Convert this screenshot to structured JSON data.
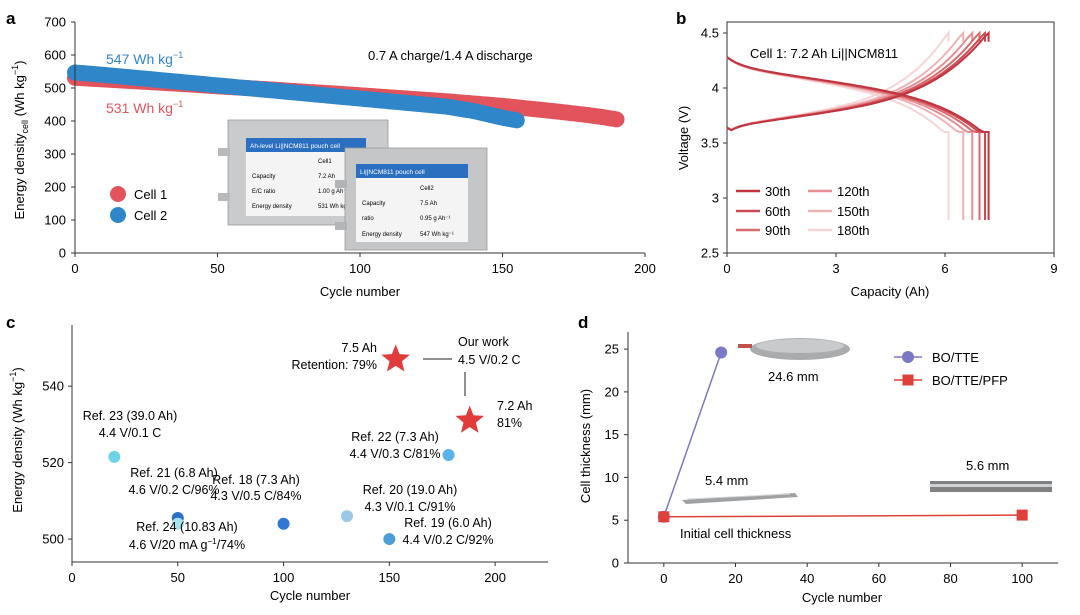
{
  "panels": {
    "a": "a",
    "b": "b",
    "c": "c",
    "d": "d"
  },
  "colors": {
    "cell1": "#e2535c",
    "cell2": "#2f86c8",
    "axis": "#333333",
    "star": "#e23b3b",
    "bo_tte": "#7a79c5",
    "pfp": "#e0403a"
  },
  "chart_data": [
    {
      "id": "a",
      "type": "scatter",
      "xlabel": "Cycle number",
      "ylabel_main": "Energy density",
      "ylabel_sub": "cell",
      "ylabel_unit": " (Wh kg",
      "ylabel_sup": "−1",
      "ylabel_end": ")",
      "xlim": [
        0,
        200
      ],
      "ylim": [
        0,
        700
      ],
      "xticks": [
        0,
        50,
        100,
        150,
        200
      ],
      "yticks": [
        0,
        100,
        200,
        300,
        400,
        500,
        600,
        700
      ],
      "condition": "0.7 A charge/1.4 A discharge",
      "legend_position": "left",
      "series": [
        {
          "name": "Cell 1",
          "color": "#e2535c",
          "points": [
            [
              0,
              531
            ],
            [
              10,
              526
            ],
            [
              20,
              521
            ],
            [
              30,
              516
            ],
            [
              40,
              511
            ],
            [
              50,
              505
            ],
            [
              60,
              500
            ],
            [
              70,
              495
            ],
            [
              80,
              489
            ],
            [
              90,
              484
            ],
            [
              100,
              478
            ],
            [
              110,
              472
            ],
            [
              120,
              466
            ],
            [
              130,
              460
            ],
            [
              140,
              453
            ],
            [
              150,
              446
            ],
            [
              160,
              437
            ],
            [
              170,
              428
            ],
            [
              180,
              418
            ],
            [
              185,
              412
            ],
            [
              190,
              405
            ]
          ]
        },
        {
          "name": "Cell 2",
          "color": "#2f86c8",
          "points": [
            [
              0,
              547
            ],
            [
              10,
              540
            ],
            [
              20,
              532
            ],
            [
              30,
              524
            ],
            [
              40,
              516
            ],
            [
              50,
              508
            ],
            [
              60,
              500
            ],
            [
              70,
              492
            ],
            [
              80,
              484
            ],
            [
              90,
              476
            ],
            [
              100,
              468
            ],
            [
              110,
              460
            ],
            [
              120,
              452
            ],
            [
              130,
              444
            ],
            [
              140,
              430
            ],
            [
              145,
              420
            ],
            [
              150,
              410
            ],
            [
              155,
              402
            ]
          ]
        }
      ],
      "annotations": [
        {
          "value": "547",
          "unit": " Wh kg",
          "sup": "−1",
          "color": "#2f86c8"
        },
        {
          "value": "531",
          "unit": " Wh kg",
          "sup": "−1",
          "color": "#e2535c"
        }
      ],
      "inset1": {
        "title": "Ah-level Li||NCM811 pouch cell",
        "rows": [
          [
            "",
            "Cell1"
          ],
          [
            "Capacity",
            "7.2 Ah"
          ],
          [
            "E/C ratio",
            "1.00 g Ah⁻¹"
          ],
          [
            "Energy density",
            "531 Wh kg⁻¹"
          ]
        ]
      },
      "inset2": {
        "title": "Li||NCM811 pouch cell",
        "rows": [
          [
            "",
            "Cell2"
          ],
          [
            "Capacity",
            "7.5 Ah"
          ],
          [
            "ratio",
            "0.95 g Ah⁻¹"
          ],
          [
            "Energy density",
            "547 Wh kg⁻¹"
          ]
        ]
      }
    },
    {
      "id": "b",
      "type": "line",
      "title": "Cell 1: 7.2 Ah Li||NCM811",
      "xlabel": "Capacity (Ah)",
      "ylabel": "Voltage (V)",
      "xlim": [
        0,
        9
      ],
      "ylim": [
        2.5,
        4.6
      ],
      "xticks": [
        0,
        3,
        6,
        9
      ],
      "yticks": [
        2.5,
        3.0,
        3.5,
        4.0,
        4.5
      ],
      "legend_position": "bottom-left",
      "series": [
        {
          "name": "30th",
          "color": "#c0353f",
          "capacity": 7.2
        },
        {
          "name": "60th",
          "color": "#cc4a52",
          "capacity": 7.1
        },
        {
          "name": "90th",
          "color": "#d86a70",
          "capacity": 6.95
        },
        {
          "name": "120th",
          "color": "#e58e93",
          "capacity": 6.75
        },
        {
          "name": "150th",
          "color": "#efb3b6",
          "capacity": 6.5
        },
        {
          "name": "180th",
          "color": "#f6d4d6",
          "capacity": 6.1
        }
      ]
    },
    {
      "id": "c",
      "type": "scatter",
      "xlabel": "Cycle number",
      "ylabel": "Energy density (Wh kg",
      "ylabel_sup": "−1",
      "ylabel_end": ")",
      "xlim": [
        0,
        225
      ],
      "ylim": [
        494,
        556
      ],
      "xticks": [
        0,
        50,
        100,
        150,
        200
      ],
      "yticks": [
        500,
        520,
        540
      ],
      "points": [
        {
          "x": 20,
          "y": 521.5,
          "color": "#6fd3e6",
          "l1": "Ref. 23 (39.0 Ah)",
          "l2": "4.4 V/0.1 C"
        },
        {
          "x": 50,
          "y": 505.5,
          "color": "#2d6fc0",
          "l1": "Ref. 21 (6.8 Ah)",
          "l2": "4.6 V/0.2 C/96%"
        },
        {
          "x": 50,
          "y": 504,
          "color": "#a9e2ee",
          "l1": "Ref. 24 (10.83 Ah)",
          "l2": "4.6 V/20 mA g",
          "l2sup": "−1",
          "l2end": "/74%"
        },
        {
          "x": 100,
          "y": 504,
          "color": "#2f78d4",
          "l1": "Ref. 18 (7.3 Ah)",
          "l2": "4.3 V/0.5 C/84%"
        },
        {
          "x": 130,
          "y": 506,
          "color": "#9bc8e8",
          "l1": "Ref. 20 (19.0 Ah)",
          "l2": "4.3 V/0.1 C/91%"
        },
        {
          "x": 150,
          "y": 500,
          "color": "#4aa0d6",
          "l1": "Ref. 19 (6.0 Ah)",
          "l2": "4.4 V/0.2 C/92%"
        },
        {
          "x": 178,
          "y": 522,
          "color": "#5ab2e8",
          "l1": "Ref. 22 (7.3 Ah)",
          "l2": "4.4 V/0.3 C/81%"
        }
      ],
      "stars": [
        {
          "x": 153,
          "y": 547,
          "l1": "7.5 Ah",
          "l2": "Retention: 79%"
        },
        {
          "x": 188,
          "y": 531,
          "l1": "7.2 Ah",
          "l2": "81%"
        }
      ],
      "our_work": {
        "l1": "Our work",
        "l2": "4.5 V/0.2 C"
      }
    },
    {
      "id": "d",
      "type": "line",
      "xlabel": "Cycle number",
      "ylabel": "Cell thickness (mm)",
      "xlim": [
        -10,
        110
      ],
      "ylim": [
        0,
        27
      ],
      "xticks": [
        0,
        20,
        40,
        60,
        80,
        100
      ],
      "yticks": [
        0,
        5,
        10,
        15,
        20,
        25
      ],
      "legend_position": "top-right",
      "series": [
        {
          "name": "BO/TTE",
          "color": "#7a79c5",
          "marker": "circle",
          "x": [
            0,
            16
          ],
          "y": [
            5.4,
            24.6
          ]
        },
        {
          "name": "BO/TTE/PFP",
          "color": "#e0403a",
          "marker": "square",
          "x": [
            0,
            100
          ],
          "y": [
            5.4,
            5.6
          ]
        }
      ],
      "annotations": [
        "24.6 mm",
        "5.4 mm",
        "5.6 mm",
        "Initial cell thickness"
      ]
    }
  ]
}
